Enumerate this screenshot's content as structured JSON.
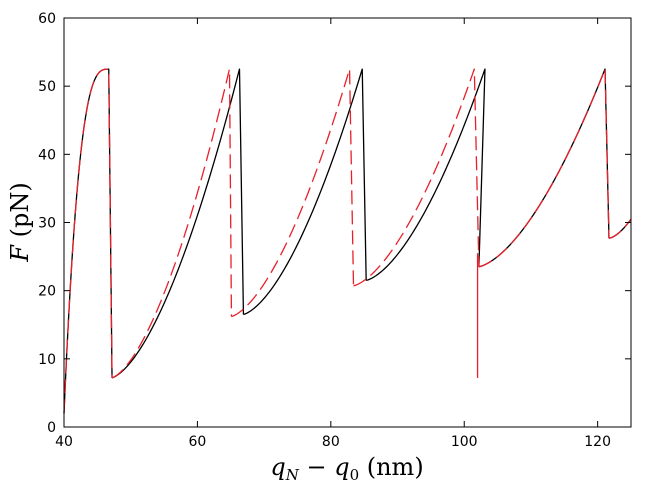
{
  "chart_data": {
    "type": "line",
    "xlabel": {
      "var1": "q",
      "sub1": "N",
      "op": " − ",
      "var2": "q",
      "sub2": "0",
      "unit": " (nm)"
    },
    "ylabel": {
      "var": "F",
      "unit": " (pN)"
    },
    "xlim": [
      40,
      125
    ],
    "ylim": [
      0,
      60
    ],
    "xticks": [
      "40",
      "60",
      "80",
      "100",
      "120"
    ],
    "yticks": [
      "0",
      "10",
      "20",
      "30",
      "40",
      "50",
      "60"
    ],
    "grid": false,
    "legend": "none",
    "series": [
      {
        "color": "#000000",
        "style": "solid",
        "segments": [
          {
            "x0": 40.0,
            "x1": 46.7,
            "y0": 2,
            "y1": 52.5,
            "shape": "concave"
          },
          {
            "x0": 47.2,
            "x1": 66.3,
            "y0": 7.2,
            "y1": 52.5,
            "shape": "convex"
          },
          {
            "x0": 66.9,
            "x1": 84.7,
            "y0": 16.5,
            "y1": 52.5,
            "shape": "convex"
          },
          {
            "x0": 85.3,
            "x1": 103.1,
            "y0": 21.5,
            "y1": 52.5,
            "shape": "convex"
          },
          {
            "x0": 102.2,
            "x1": 121.1,
            "y0": 23.5,
            "y1": 52.5,
            "shape": "convex"
          },
          {
            "x0": 121.7,
            "x1": 125.0,
            "y0": 27.7,
            "y1": 30.5,
            "shape": "convex"
          }
        ]
      },
      {
        "color": "#e8202a",
        "style": "dashed",
        "segments": [
          {
            "x0": 40.0,
            "x1": 46.7,
            "y0": 2,
            "y1": 52.5,
            "shape": "concave"
          },
          {
            "x0": 47.2,
            "x1": 64.8,
            "y0": 7.2,
            "y1": 52.5,
            "shape": "convex"
          },
          {
            "x0": 65.1,
            "x1": 82.8,
            "y0": 16.2,
            "y1": 52.5,
            "shape": "convex"
          },
          {
            "x0": 83.4,
            "x1": 101.5,
            "y0": 20.7,
            "y1": 52.5,
            "shape": "convex"
          },
          {
            "x0": 102.2,
            "x1": 121.1,
            "y0": 23.5,
            "y1": 52.5,
            "shape": "convex"
          },
          {
            "x0": 121.7,
            "x1": 125.0,
            "y0": 27.7,
            "y1": 30.5,
            "shape": "convex"
          }
        ],
        "spikes": [
          {
            "x": 102.0,
            "y_bottom": 7.2
          }
        ]
      }
    ]
  }
}
